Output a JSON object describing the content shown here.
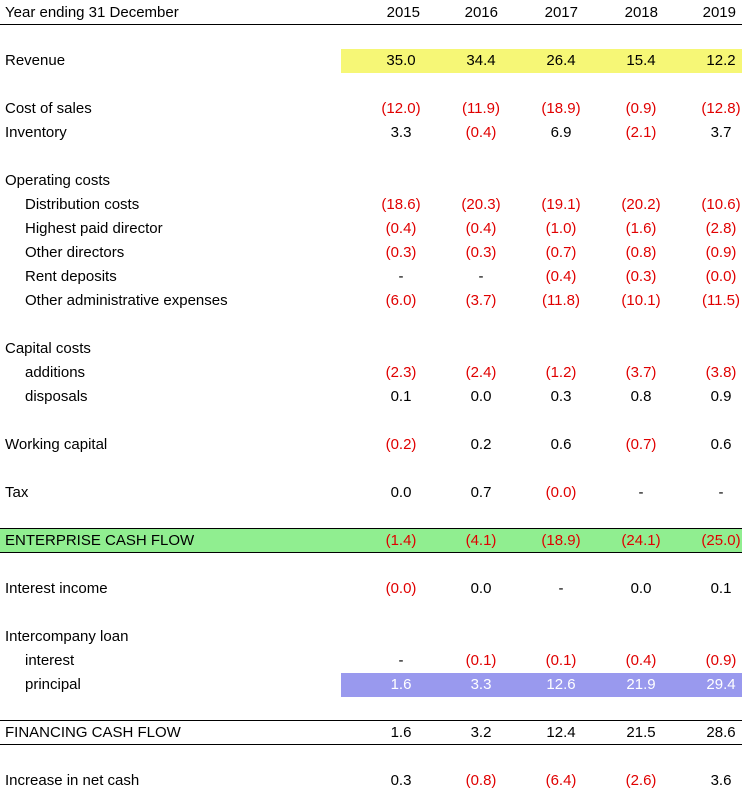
{
  "header": {
    "title": "Year ending 31 December",
    "years": [
      "2015",
      "2016",
      "2017",
      "2018",
      "2019"
    ]
  },
  "rows": [
    {
      "id": "revenue",
      "label": "Revenue",
      "values": [
        "35.0",
        "34.4",
        "26.4",
        "15.4",
        "12.2"
      ]
    },
    {
      "id": "cost-of-sales",
      "label": "Cost of sales",
      "values": [
        "(12.0)",
        "(11.9)",
        "(18.9)",
        "(0.9)",
        "(12.8)"
      ]
    },
    {
      "id": "inventory",
      "label": "Inventory",
      "values": [
        "3.3",
        "(0.4)",
        "6.9",
        "(2.1)",
        "3.7"
      ]
    },
    {
      "id": "operating-costs",
      "label": "Operating costs",
      "values": []
    },
    {
      "id": "distribution-costs",
      "label": "Distribution costs",
      "values": [
        "(18.6)",
        "(20.3)",
        "(19.1)",
        "(20.2)",
        "(10.6)"
      ]
    },
    {
      "id": "highest-paid-director",
      "label": "Highest paid director",
      "values": [
        "(0.4)",
        "(0.4)",
        "(1.0)",
        "(1.6)",
        "(2.8)"
      ]
    },
    {
      "id": "other-directors",
      "label": "Other directors",
      "values": [
        "(0.3)",
        "(0.3)",
        "(0.7)",
        "(0.8)",
        "(0.9)"
      ]
    },
    {
      "id": "rent-deposits",
      "label": "Rent deposits",
      "values": [
        "-",
        "-",
        "(0.4)",
        "(0.3)",
        "(0.0)"
      ]
    },
    {
      "id": "other-admin",
      "label": "Other administrative expenses",
      "values": [
        "(6.0)",
        "(3.7)",
        "(11.8)",
        "(10.1)",
        "(11.5)"
      ]
    },
    {
      "id": "capital-costs",
      "label": "Capital costs",
      "values": []
    },
    {
      "id": "additions",
      "label": "additions",
      "values": [
        "(2.3)",
        "(2.4)",
        "(1.2)",
        "(3.7)",
        "(3.8)"
      ]
    },
    {
      "id": "disposals",
      "label": "disposals",
      "values": [
        "0.1",
        "0.0",
        "0.3",
        "0.8",
        "0.9"
      ]
    },
    {
      "id": "working-capital",
      "label": "Working capital",
      "values": [
        "(0.2)",
        "0.2",
        "0.6",
        "(0.7)",
        "0.6"
      ]
    },
    {
      "id": "tax",
      "label": "Tax",
      "values": [
        "0.0",
        "0.7",
        "(0.0)",
        "-",
        "-"
      ]
    },
    {
      "id": "enterprise-cash-flow",
      "label": "ENTERPRISE CASH FLOW",
      "values": [
        "(1.4)",
        "(4.1)",
        "(18.9)",
        "(24.1)",
        "(25.0)"
      ]
    },
    {
      "id": "interest-income",
      "label": "Interest income",
      "values": [
        "(0.0)",
        "0.0",
        "-",
        "0.0",
        "0.1"
      ]
    },
    {
      "id": "intercompany-loan",
      "label": "Intercompany loan",
      "values": []
    },
    {
      "id": "interest",
      "label": "interest",
      "values": [
        "-",
        "(0.1)",
        "(0.1)",
        "(0.4)",
        "(0.9)"
      ]
    },
    {
      "id": "principal",
      "label": "principal",
      "values": [
        "1.6",
        "3.3",
        "12.6",
        "21.9",
        "29.4"
      ]
    },
    {
      "id": "financing-cash-flow",
      "label": "FINANCING CASH FLOW",
      "values": [
        "1.6",
        "3.2",
        "12.4",
        "21.5",
        "28.6"
      ]
    },
    {
      "id": "increase-in-net-cash",
      "label": "Increase in net cash",
      "values": [
        "0.3",
        "(0.8)",
        "(6.4)",
        "(2.6)",
        "3.6"
      ]
    }
  ],
  "colors": {
    "negative": "#e00000",
    "highlight_revenue": "#f6f776",
    "highlight_enterprise": "#90ee90",
    "highlight_principal": "#9999ee"
  }
}
